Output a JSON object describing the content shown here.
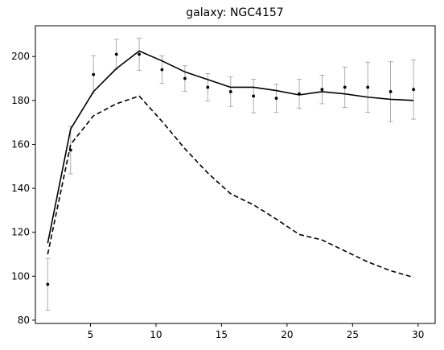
{
  "chart_data": {
    "type": "scatter",
    "title": "galaxy: NGC4157",
    "xlabel": "",
    "ylabel": "",
    "xlim": [
      0.8,
      31.3
    ],
    "ylim": [
      78.5,
      214
    ],
    "x_ticks": [
      5,
      10,
      15,
      20,
      25,
      30
    ],
    "y_ticks": [
      80,
      100,
      120,
      140,
      160,
      180,
      200
    ],
    "grid": false,
    "legend": "none",
    "series": [
      {
        "style": "points-with-errorbars",
        "color": "#000000",
        "errorbar_color": "#999999",
        "x": [
          1.74,
          3.49,
          5.23,
          6.98,
          8.72,
          10.46,
          12.21,
          13.95,
          15.7,
          17.44,
          19.18,
          20.93,
          22.67,
          24.41,
          26.16,
          27.9,
          29.65
        ],
        "y": [
          96.3,
          157.4,
          191.8,
          201.0,
          201.0,
          194.0,
          190.0,
          186.0,
          184.0,
          182.0,
          181.0,
          183.0,
          185.0,
          186.0,
          186.0,
          184.0,
          185.0
        ],
        "err": [
          11.8,
          10.8,
          8.6,
          6.8,
          7.4,
          6.3,
          5.8,
          6.2,
          6.7,
          7.6,
          6.4,
          6.6,
          6.5,
          9.2,
          11.4,
          13.6,
          13.5
        ]
      },
      {
        "style": "solid-line",
        "color": "#000000",
        "x": [
          1.74,
          3.49,
          5.23,
          6.98,
          8.72,
          10.46,
          12.21,
          13.95,
          15.7,
          17.44,
          19.18,
          20.93,
          22.67,
          24.41,
          26.16,
          27.9,
          29.65
        ],
        "y": [
          115.0,
          167.0,
          184.0,
          194.5,
          202.5,
          198.0,
          193.0,
          189.5,
          186.0,
          186.0,
          184.5,
          182.5,
          184.0,
          183.0,
          181.5,
          180.5,
          180.0
        ]
      },
      {
        "style": "dashed-line",
        "color": "#000000",
        "x": [
          1.74,
          3.49,
          5.23,
          6.98,
          8.72,
          10.46,
          12.21,
          13.95,
          15.7,
          17.44,
          19.18,
          20.93,
          22.67,
          24.41,
          26.16,
          27.9,
          29.65
        ],
        "y": [
          110.0,
          160.0,
          173.0,
          178.5,
          182.0,
          170.5,
          158.0,
          147.0,
          137.5,
          132.5,
          126.0,
          119.0,
          116.5,
          111.5,
          106.5,
          102.5,
          99.5
        ]
      }
    ]
  }
}
